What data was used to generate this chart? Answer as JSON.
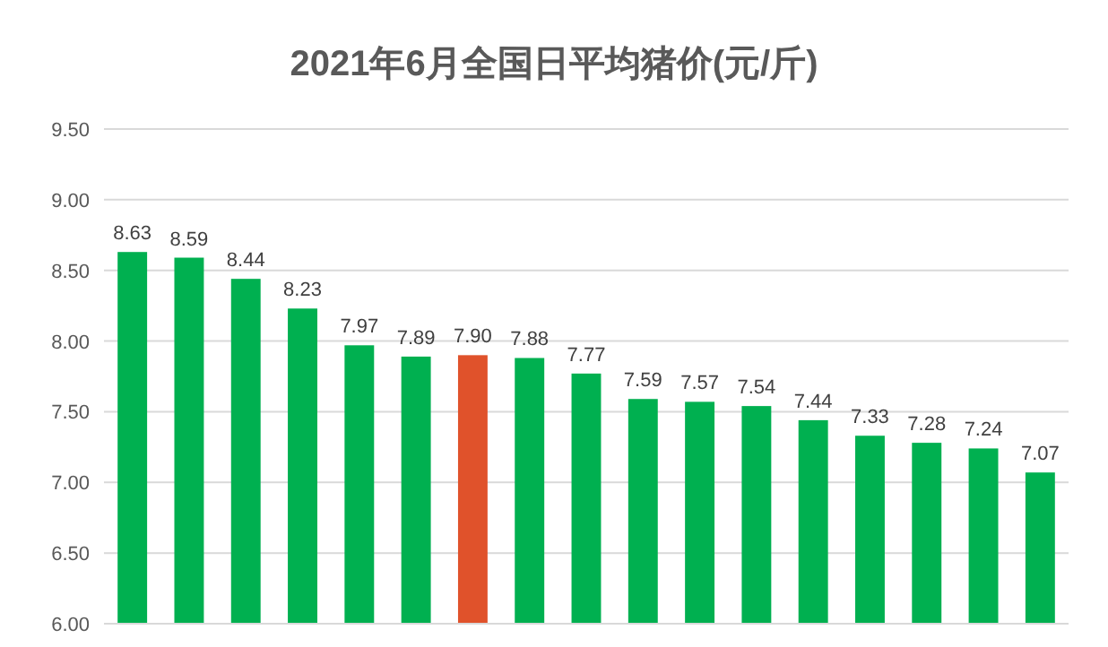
{
  "chart_data": {
    "type": "bar",
    "title": "2021年6月全国日平均猪价(元/斤)",
    "categories": [
      null,
      null,
      null,
      null,
      null,
      null,
      null,
      null,
      null,
      null,
      null,
      null,
      null,
      null,
      null,
      null,
      null
    ],
    "values": [
      8.63,
      8.59,
      8.44,
      8.23,
      7.97,
      7.89,
      7.9,
      7.88,
      7.77,
      7.59,
      7.57,
      7.54,
      7.44,
      7.33,
      7.28,
      7.24,
      7.07
    ],
    "colors": [
      "#00b050",
      "#00b050",
      "#00b050",
      "#00b050",
      "#00b050",
      "#00b050",
      "#e0522b",
      "#00b050",
      "#00b050",
      "#00b050",
      "#00b050",
      "#00b050",
      "#00b050",
      "#00b050",
      "#00b050",
      "#00b050",
      "#00b050"
    ],
    "value_labels": [
      "8.63",
      "8.59",
      "8.44",
      "8.23",
      "7.97",
      "7.89",
      "7.90",
      "7.88",
      "7.77",
      "7.59",
      "7.57",
      "7.54",
      "7.44",
      "7.33",
      "7.28",
      "7.24",
      "7.07"
    ],
    "ylim": [
      6,
      9.5
    ],
    "yticks": [
      {
        "value": 6,
        "label": "6.00"
      },
      {
        "value": 6.5,
        "label": "6.50"
      },
      {
        "value": 7,
        "label": "7.00"
      },
      {
        "value": 7.5,
        "label": "7.50"
      },
      {
        "value": 8,
        "label": "8.00"
      },
      {
        "value": 8.5,
        "label": "8.50"
      },
      {
        "value": 9,
        "label": "9.00"
      },
      {
        "value": 9.5,
        "label": "9.50"
      }
    ],
    "grid": "y"
  }
}
